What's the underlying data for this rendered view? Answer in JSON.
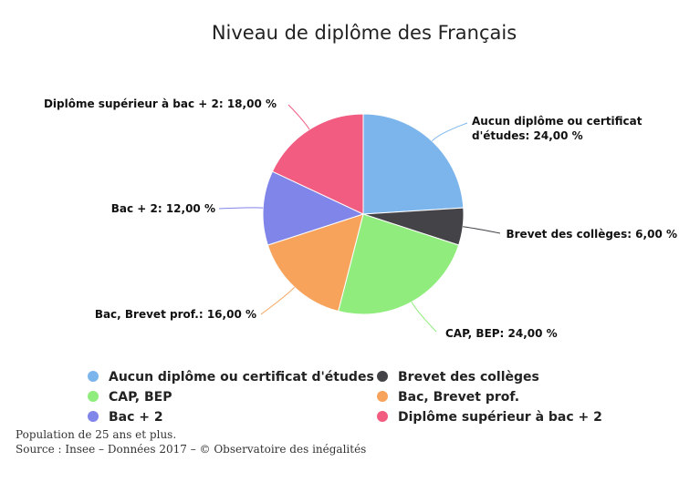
{
  "chart_data": {
    "type": "pie",
    "title": "Niveau de diplôme des Français",
    "slices": [
      {
        "label": "Aucun diplôme ou certificat d'études",
        "value": 24,
        "value_text": "24,00 %",
        "color": "#7cb5ec"
      },
      {
        "label": "Brevet des collèges",
        "value": 6,
        "value_text": "6,00 %",
        "color": "#434348"
      },
      {
        "label": "CAP, BEP",
        "value": 24,
        "value_text": "24,00 %",
        "color": "#90ed7d"
      },
      {
        "label": "Bac, Brevet prof.",
        "value": 16,
        "value_text": "16,00 %",
        "color": "#f7a35c"
      },
      {
        "label": "Bac + 2",
        "value": 12,
        "value_text": "12,00 %",
        "color": "#8085e9"
      },
      {
        "label": "Diplôme supérieur à bac + 2",
        "value": 18,
        "value_text": "18,00 %",
        "color": "#f15c80"
      }
    ],
    "legend_position": "bottom"
  },
  "footer": {
    "note": "Population de 25 ans et plus.",
    "source": "Source : Insee – Données 2017 – © Observatoire des inégalités"
  }
}
